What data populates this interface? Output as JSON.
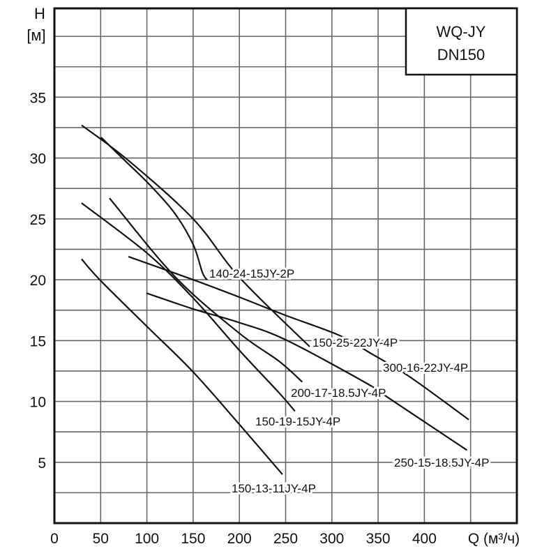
{
  "chart_data": {
    "type": "line",
    "title": "WQ-JY",
    "subtitle": "DN150",
    "xlabel": "Q (м³/ч)",
    "ylabel": "H",
    "ylabel_unit": "[м]",
    "xlim": [
      0,
      500
    ],
    "ylim": [
      0,
      42.3
    ],
    "grid": true,
    "x_ticks": [
      "0",
      "50",
      "100",
      "150",
      "200",
      "250",
      "300",
      "350",
      "400"
    ],
    "y_ticks": [
      "5",
      "10",
      "15",
      "20",
      "25",
      "30",
      "35"
    ],
    "series": [
      {
        "name": "140-24-15JY-2P",
        "points": [
          [
            50.5,
            31.7
          ],
          [
            74.7,
            29.9
          ],
          [
            101.8,
            27.9
          ],
          [
            129.7,
            25.5
          ],
          [
            150,
            22.9
          ],
          [
            160,
            20.6
          ],
          [
            165,
            20.0
          ]
        ]
      },
      {
        "name": "150-25-22JY-4P",
        "points": [
          [
            29.4,
            32.7
          ],
          [
            80,
            29.8
          ],
          [
            150,
            25.0
          ],
          [
            200,
            20.2
          ],
          [
            276,
            14.5
          ]
        ]
      },
      {
        "name": "300-16-22JY-4P",
        "points": [
          [
            80,
            21.9
          ],
          [
            150,
            20.0
          ],
          [
            199,
            18.6
          ],
          [
            249,
            17.1
          ],
          [
            309,
            15.4
          ],
          [
            341,
            14.0
          ],
          [
            384.6,
            12.0
          ],
          [
            448,
            8.5
          ]
        ]
      },
      {
        "name": "200-17-18.5JY-4P",
        "points": [
          [
            59.6,
            26.7
          ],
          [
            131,
            20.2
          ],
          [
            200,
            15.6
          ],
          [
            243,
            13.3
          ],
          [
            268,
            11.6
          ]
        ]
      },
      {
        "name": "150-19-15JY-4P",
        "points": [
          [
            29.4,
            26.3
          ],
          [
            100,
            22.2
          ],
          [
            150,
            18.5
          ],
          [
            200,
            14.2
          ],
          [
            243,
            10.7
          ],
          [
            260,
            9.2
          ]
        ]
      },
      {
        "name": "250-15-18.5JY-4P",
        "points": [
          [
            99.5,
            18.9
          ],
          [
            150,
            17.6
          ],
          [
            199,
            16.5
          ],
          [
            249,
            15.1
          ],
          [
            335,
            11.6
          ],
          [
            365,
            10.1
          ],
          [
            446,
            6.0
          ]
        ]
      },
      {
        "name": "150-13-11JY-4P",
        "points": [
          [
            29.4,
            21.7
          ],
          [
            49,
            20.0
          ],
          [
            99.5,
            16.2
          ],
          [
            149,
            12.5
          ],
          [
            199,
            8.2
          ],
          [
            246.6,
            4.0
          ]
        ]
      }
    ]
  }
}
